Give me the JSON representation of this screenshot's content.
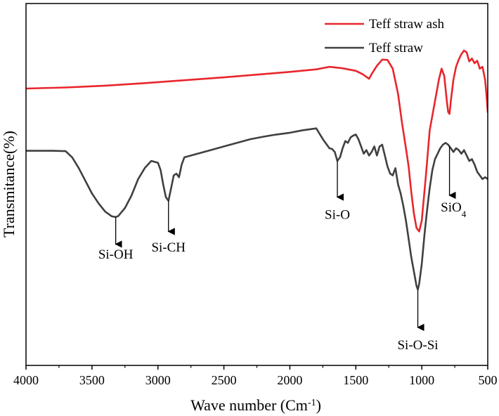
{
  "chart_data": {
    "type": "line",
    "title": "",
    "xlabel": "Wave number (Cm",
    "xlabel_sup": "-1",
    "xlabel_tail": ")",
    "ylabel": "Transmitance(%)",
    "xlim": [
      4000,
      500
    ],
    "x_reversed": true,
    "y_ticks_shown": false,
    "grid": false,
    "legend_position": "top-right",
    "xticks": [
      4000,
      3500,
      3000,
      2500,
      2000,
      1500,
      1000,
      500
    ],
    "xtick_labels": [
      "4000",
      "3500",
      "3000",
      "2500",
      "2000",
      "1500",
      "1000",
      "500"
    ],
    "ylim": [
      0,
      100
    ],
    "series": [
      {
        "name": "Teff straw ash",
        "color": "#e8262c",
        "x": [
          4000,
          3700,
          3400,
          3100,
          2800,
          2500,
          2200,
          2000,
          1800,
          1700,
          1600,
          1500,
          1450,
          1400,
          1380,
          1340,
          1300,
          1260,
          1220,
          1180,
          1150,
          1120,
          1100,
          1080,
          1060,
          1040,
          1020,
          1000,
          970,
          940,
          900,
          870,
          850,
          830,
          810,
          800,
          790,
          780,
          760,
          740,
          720,
          700,
          680,
          660,
          640,
          620,
          600,
          580,
          560,
          540,
          520,
          510,
          500
        ],
        "y": [
          76.5,
          76.8,
          77.3,
          78.0,
          78.8,
          79.6,
          80.5,
          81.1,
          81.8,
          82.5,
          82.1,
          81.4,
          80.5,
          79.2,
          80.5,
          82.8,
          84.5,
          84.4,
          82.0,
          75.0,
          67.0,
          60.0,
          55.0,
          48.0,
          42.0,
          38.0,
          37.0,
          40.0,
          52.0,
          65.0,
          73.0,
          79.0,
          82.0,
          80.0,
          73.0,
          70.0,
          69.5,
          73.0,
          79.0,
          82.5,
          84.5,
          86.0,
          87.0,
          86.5,
          84.0,
          84.8,
          83.5,
          84.2,
          82.0,
          82.5,
          79.0,
          75.0,
          70.0
        ]
      },
      {
        "name": "Teff straw",
        "color": "#404040",
        "x": [
          4000,
          3900,
          3800,
          3700,
          3650,
          3600,
          3550,
          3500,
          3450,
          3400,
          3350,
          3320,
          3300,
          3250,
          3200,
          3150,
          3100,
          3050,
          3000,
          2980,
          2960,
          2940,
          2920,
          2900,
          2880,
          2860,
          2840,
          2820,
          2800,
          2700,
          2600,
          2500,
          2400,
          2300,
          2200,
          2100,
          2000,
          1900,
          1800,
          1750,
          1720,
          1700,
          1680,
          1660,
          1640,
          1620,
          1600,
          1580,
          1560,
          1540,
          1520,
          1500,
          1480,
          1460,
          1440,
          1420,
          1400,
          1380,
          1360,
          1340,
          1320,
          1300,
          1280,
          1260,
          1240,
          1220,
          1200,
          1180,
          1160,
          1140,
          1120,
          1100,
          1080,
          1060,
          1040,
          1030,
          1020,
          1000,
          980,
          960,
          940,
          920,
          900,
          880,
          860,
          840,
          820,
          800,
          780,
          760,
          740,
          720,
          700,
          680,
          660,
          640,
          620,
          600,
          580,
          560,
          540,
          520,
          500
        ],
        "y": [
          59.3,
          59.3,
          59.3,
          59.2,
          57.5,
          54.5,
          51.0,
          47.5,
          44.8,
          42.5,
          41.2,
          41.0,
          41.3,
          43.5,
          47.0,
          51.5,
          54.5,
          56.5,
          56.0,
          54.0,
          50.0,
          46.5,
          45.5,
          49.0,
          52.5,
          53.0,
          52.0,
          55.5,
          57.5,
          58.5,
          59.5,
          60.5,
          61.5,
          62.5,
          63.2,
          63.8,
          64.3,
          65.0,
          65.5,
          62.5,
          61.0,
          60.0,
          59.8,
          59.0,
          56.5,
          57.5,
          60.0,
          62.0,
          61.5,
          63.0,
          63.5,
          63.8,
          62.5,
          60.5,
          58.5,
          59.5,
          58.0,
          59.0,
          60.5,
          58.0,
          60.5,
          61.0,
          58.0,
          55.0,
          53.0,
          52.5,
          54.5,
          50.0,
          47.5,
          44.0,
          40.0,
          35.0,
          30.0,
          26.0,
          22.0,
          21.0,
          22.5,
          28.0,
          36.0,
          43.0,
          49.0,
          54.0,
          57.0,
          58.5,
          60.0,
          61.0,
          61.5,
          61.0,
          60.0,
          59.0,
          60.0,
          59.5,
          58.5,
          59.5,
          58.0,
          56.5,
          57.0,
          55.5,
          53.5,
          52.5,
          51.5,
          52.0,
          51.5
        ]
      }
    ],
    "annotations": [
      {
        "label": "Si-OH",
        "x": 3320,
        "arrow_from": 41.0,
        "arrow_to": 33.5,
        "text_y": 29.5,
        "text_anchor": "middle"
      },
      {
        "label": "Si-CH",
        "x": 2920,
        "arrow_from": 45.5,
        "arrow_to": 37.0,
        "text_y": 31.5,
        "text_anchor": "middle"
      },
      {
        "label": "Si-O",
        "x": 1640,
        "arrow_from": 56.5,
        "arrow_to": 46.5,
        "text_y": 40.5,
        "text_anchor": "middle"
      },
      {
        "label": "Si-O-Si",
        "x": 1030,
        "arrow_from": 21.0,
        "arrow_to": 10.5,
        "text_y": 4.5,
        "text_anchor": "middle"
      },
      {
        "label": "SiO",
        "label_sub": "4",
        "x": 790,
        "arrow_from": 60.5,
        "arrow_to": 47.0,
        "text_y": 42.5,
        "text_anchor": "middle",
        "text_x": 760
      }
    ]
  }
}
